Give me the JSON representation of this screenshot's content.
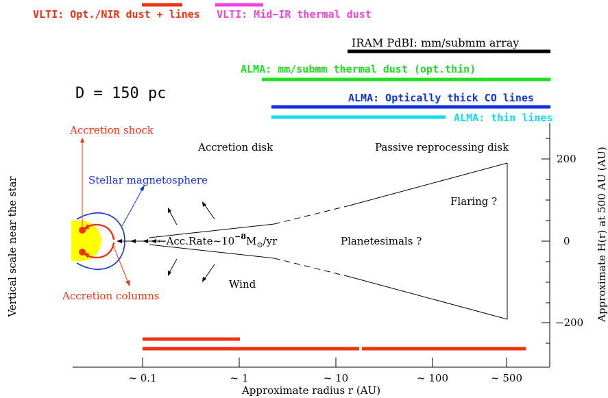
{
  "header": {
    "vlti_nir": "VLTI: Opt./NIR dust + lines",
    "vlti_mir": "VLTI: Mid−IR thermal dust"
  },
  "instruments": {
    "iram": "IRAM PdBI: mm/submm array",
    "alma_dust": "ALMA: mm/submm thermal dust (opt.thin)",
    "alma_co": "ALMA: Optically thick CO lines",
    "alma_thin": "ALMA: thin lines"
  },
  "distance": "D = 150 pc",
  "labels": {
    "accretion_shock": "Accretion shock",
    "magnetosphere": "Stellar magnetosphere",
    "accretion_columns": "Accretion columns",
    "accretion_disk": "Accretion disk",
    "passive_disk": "Passive reprocessing disk",
    "flaring": "Flaring ?",
    "planetesimals": "Planetesimals ?",
    "wind": "Wind",
    "acc_rate_prefix": "←Acc.Rate~10",
    "acc_rate_exp": "−8",
    "acc_rate_unit": "M",
    "acc_rate_sub": "⊙",
    "acc_rate_suffix": "/yr"
  },
  "axes": {
    "xlabel": "Approximate radius r (AU)",
    "ylabel_left": "Vertical scale near the star",
    "ylabel_right": "Approximate H(r) at 500 AU (AU)",
    "xticks": [
      "~ 0.1",
      "~ 1",
      "~ 10",
      "~ 100",
      "~ 500"
    ],
    "yticks": [
      "200",
      "0",
      "−200"
    ]
  },
  "colors": {
    "red": "#ee3311",
    "magenta": "#ee44dd",
    "black": "#000000",
    "green": "#22dd22",
    "blue": "#1133dd",
    "cyan": "#11ddee",
    "star": "#ffff00"
  }
}
